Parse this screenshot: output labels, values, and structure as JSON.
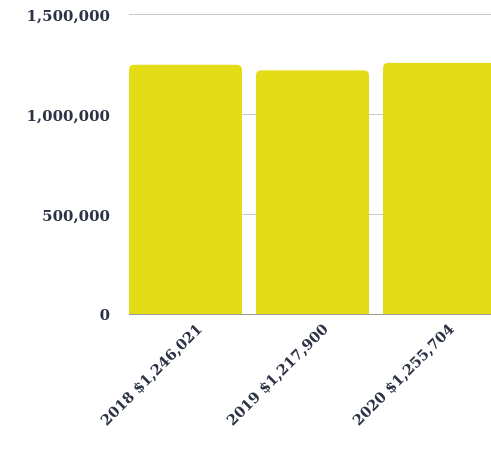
{
  "chart_data": {
    "type": "bar",
    "categories": [
      "2018 $1,246,021",
      "2019 $1,217,900",
      "2020 $1,255,704"
    ],
    "values": [
      1246021,
      1217900,
      1255704
    ],
    "y_ticks": [
      "0",
      "500,000",
      "1,000,000",
      "1,500,000"
    ],
    "ylim": [
      0,
      1500000
    ],
    "grid": true,
    "legend": "none",
    "colors": {
      "bar": "#e3dc16",
      "grid": "#c8c8c8",
      "text": "#2c3344"
    }
  }
}
